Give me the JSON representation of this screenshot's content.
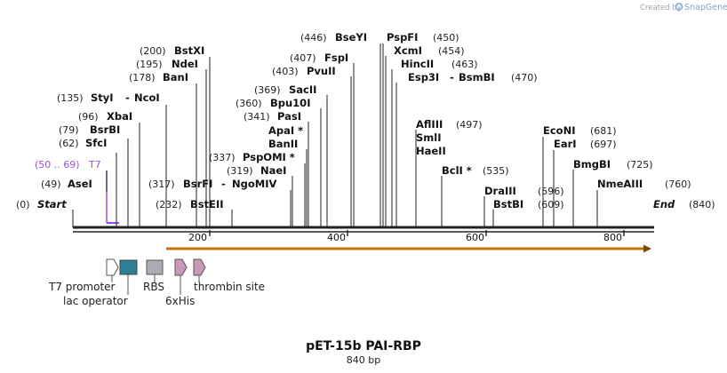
{
  "branding": {
    "created_by": "Created by",
    "product": "SnapGene"
  },
  "construct": {
    "name": "pET-15b PAI-RBP",
    "length_label": "840 bp",
    "length_bp": 840
  },
  "ends": [
    {
      "pos": "(0)",
      "name": "Start"
    },
    {
      "pos": "(840)",
      "name": "End"
    }
  ],
  "sites": [
    {
      "pos": "(49)",
      "name": "AseI"
    },
    {
      "pos": "(62)",
      "name": "SfcI"
    },
    {
      "pos": "(79)",
      "name": "BsrBI"
    },
    {
      "pos": "(96)",
      "name": "XbaI"
    },
    {
      "pos": "(135)",
      "name": "StyI",
      "sep": "-",
      "name2": "NcoI"
    },
    {
      "pos": "(178)",
      "name": "BanI"
    },
    {
      "pos": "(195)",
      "name": "NdeI"
    },
    {
      "pos": "(200)",
      "name": "BstXI"
    },
    {
      "pos": "(232)",
      "name": "BstEII"
    },
    {
      "pos": "(317)",
      "name": "BsrFI",
      "sep": "-",
      "name2": "NgoMIV"
    },
    {
      "pos": "(319)",
      "name": "NaeI"
    },
    {
      "pos": "(337)",
      "name": "PspOMI *"
    },
    {
      "pos": "",
      "name": "BanII"
    },
    {
      "pos": "",
      "name": "ApaI *"
    },
    {
      "pos": "(341)",
      "name": "PasI"
    },
    {
      "pos": "(360)",
      "name": "Bpu10I"
    },
    {
      "pos": "(369)",
      "name": "SacII"
    },
    {
      "pos": "(403)",
      "name": "PvuII"
    },
    {
      "pos": "(407)",
      "name": "FspI"
    },
    {
      "pos": "(446)",
      "name": "BseYI"
    },
    {
      "pos": "(450)",
      "name": "PspFI"
    },
    {
      "pos": "(454)",
      "name": "XcmI"
    },
    {
      "pos": "(463)",
      "name": "HincII"
    },
    {
      "pos": "(470)",
      "name": "Esp3I",
      "sep": "-",
      "name2": "BsmBI"
    },
    {
      "pos": "(497)",
      "name": "AflIII"
    },
    {
      "pos": "",
      "name": "SmlI"
    },
    {
      "pos": "",
      "name": "HaeII"
    },
    {
      "pos": "(535)",
      "name": "BclI *"
    },
    {
      "pos": "(596)",
      "name": "DraIII"
    },
    {
      "pos": "(609)",
      "name": "BstBI"
    },
    {
      "pos": "(681)",
      "name": "EcoNI"
    },
    {
      "pos": "(697)",
      "name": "EarI"
    },
    {
      "pos": "(725)",
      "name": "BmgBI"
    },
    {
      "pos": "(760)",
      "name": "NmeAIII"
    }
  ],
  "primer": {
    "pos": "(50 .. 69)",
    "name": "T7",
    "color": "#9b4fe8"
  },
  "ruler_ticks": [
    "200",
    "400",
    "600",
    "800"
  ],
  "orf": {
    "color": "#f0a030",
    "label": "orange arrow"
  },
  "features": [
    {
      "name": "T7 promoter",
      "color": "#ffffff"
    },
    {
      "name": "lac operator",
      "color": "#2e7f96"
    },
    {
      "name": "RBS",
      "color": "#a9adb3"
    },
    {
      "name": "6xHis",
      "color": "#c79aba"
    },
    {
      "name": "thrombin site",
      "color": "#c79aba"
    }
  ],
  "colors": {
    "backbone": "#222222",
    "snapgene_logo": "#7fb0d8"
  }
}
